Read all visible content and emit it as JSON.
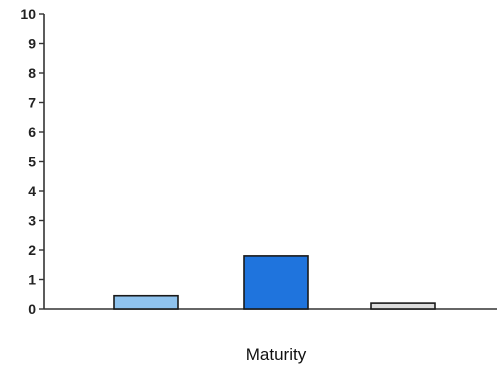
{
  "chart_data": {
    "type": "bar",
    "title": "",
    "xlabel": "Maturity",
    "ylabel": "",
    "ylim": [
      0,
      10
    ],
    "yticks": [
      "0",
      "1",
      "2",
      "3",
      "4",
      "5",
      "6",
      "7",
      "8",
      "9",
      "10"
    ],
    "categories": [
      "",
      "",
      ""
    ],
    "values": [
      0.45,
      1.8,
      0.2
    ],
    "colors": [
      "#8fc3ee",
      "#1f74dd",
      "#dcdcdc"
    ],
    "grid": false,
    "legend": "none"
  }
}
